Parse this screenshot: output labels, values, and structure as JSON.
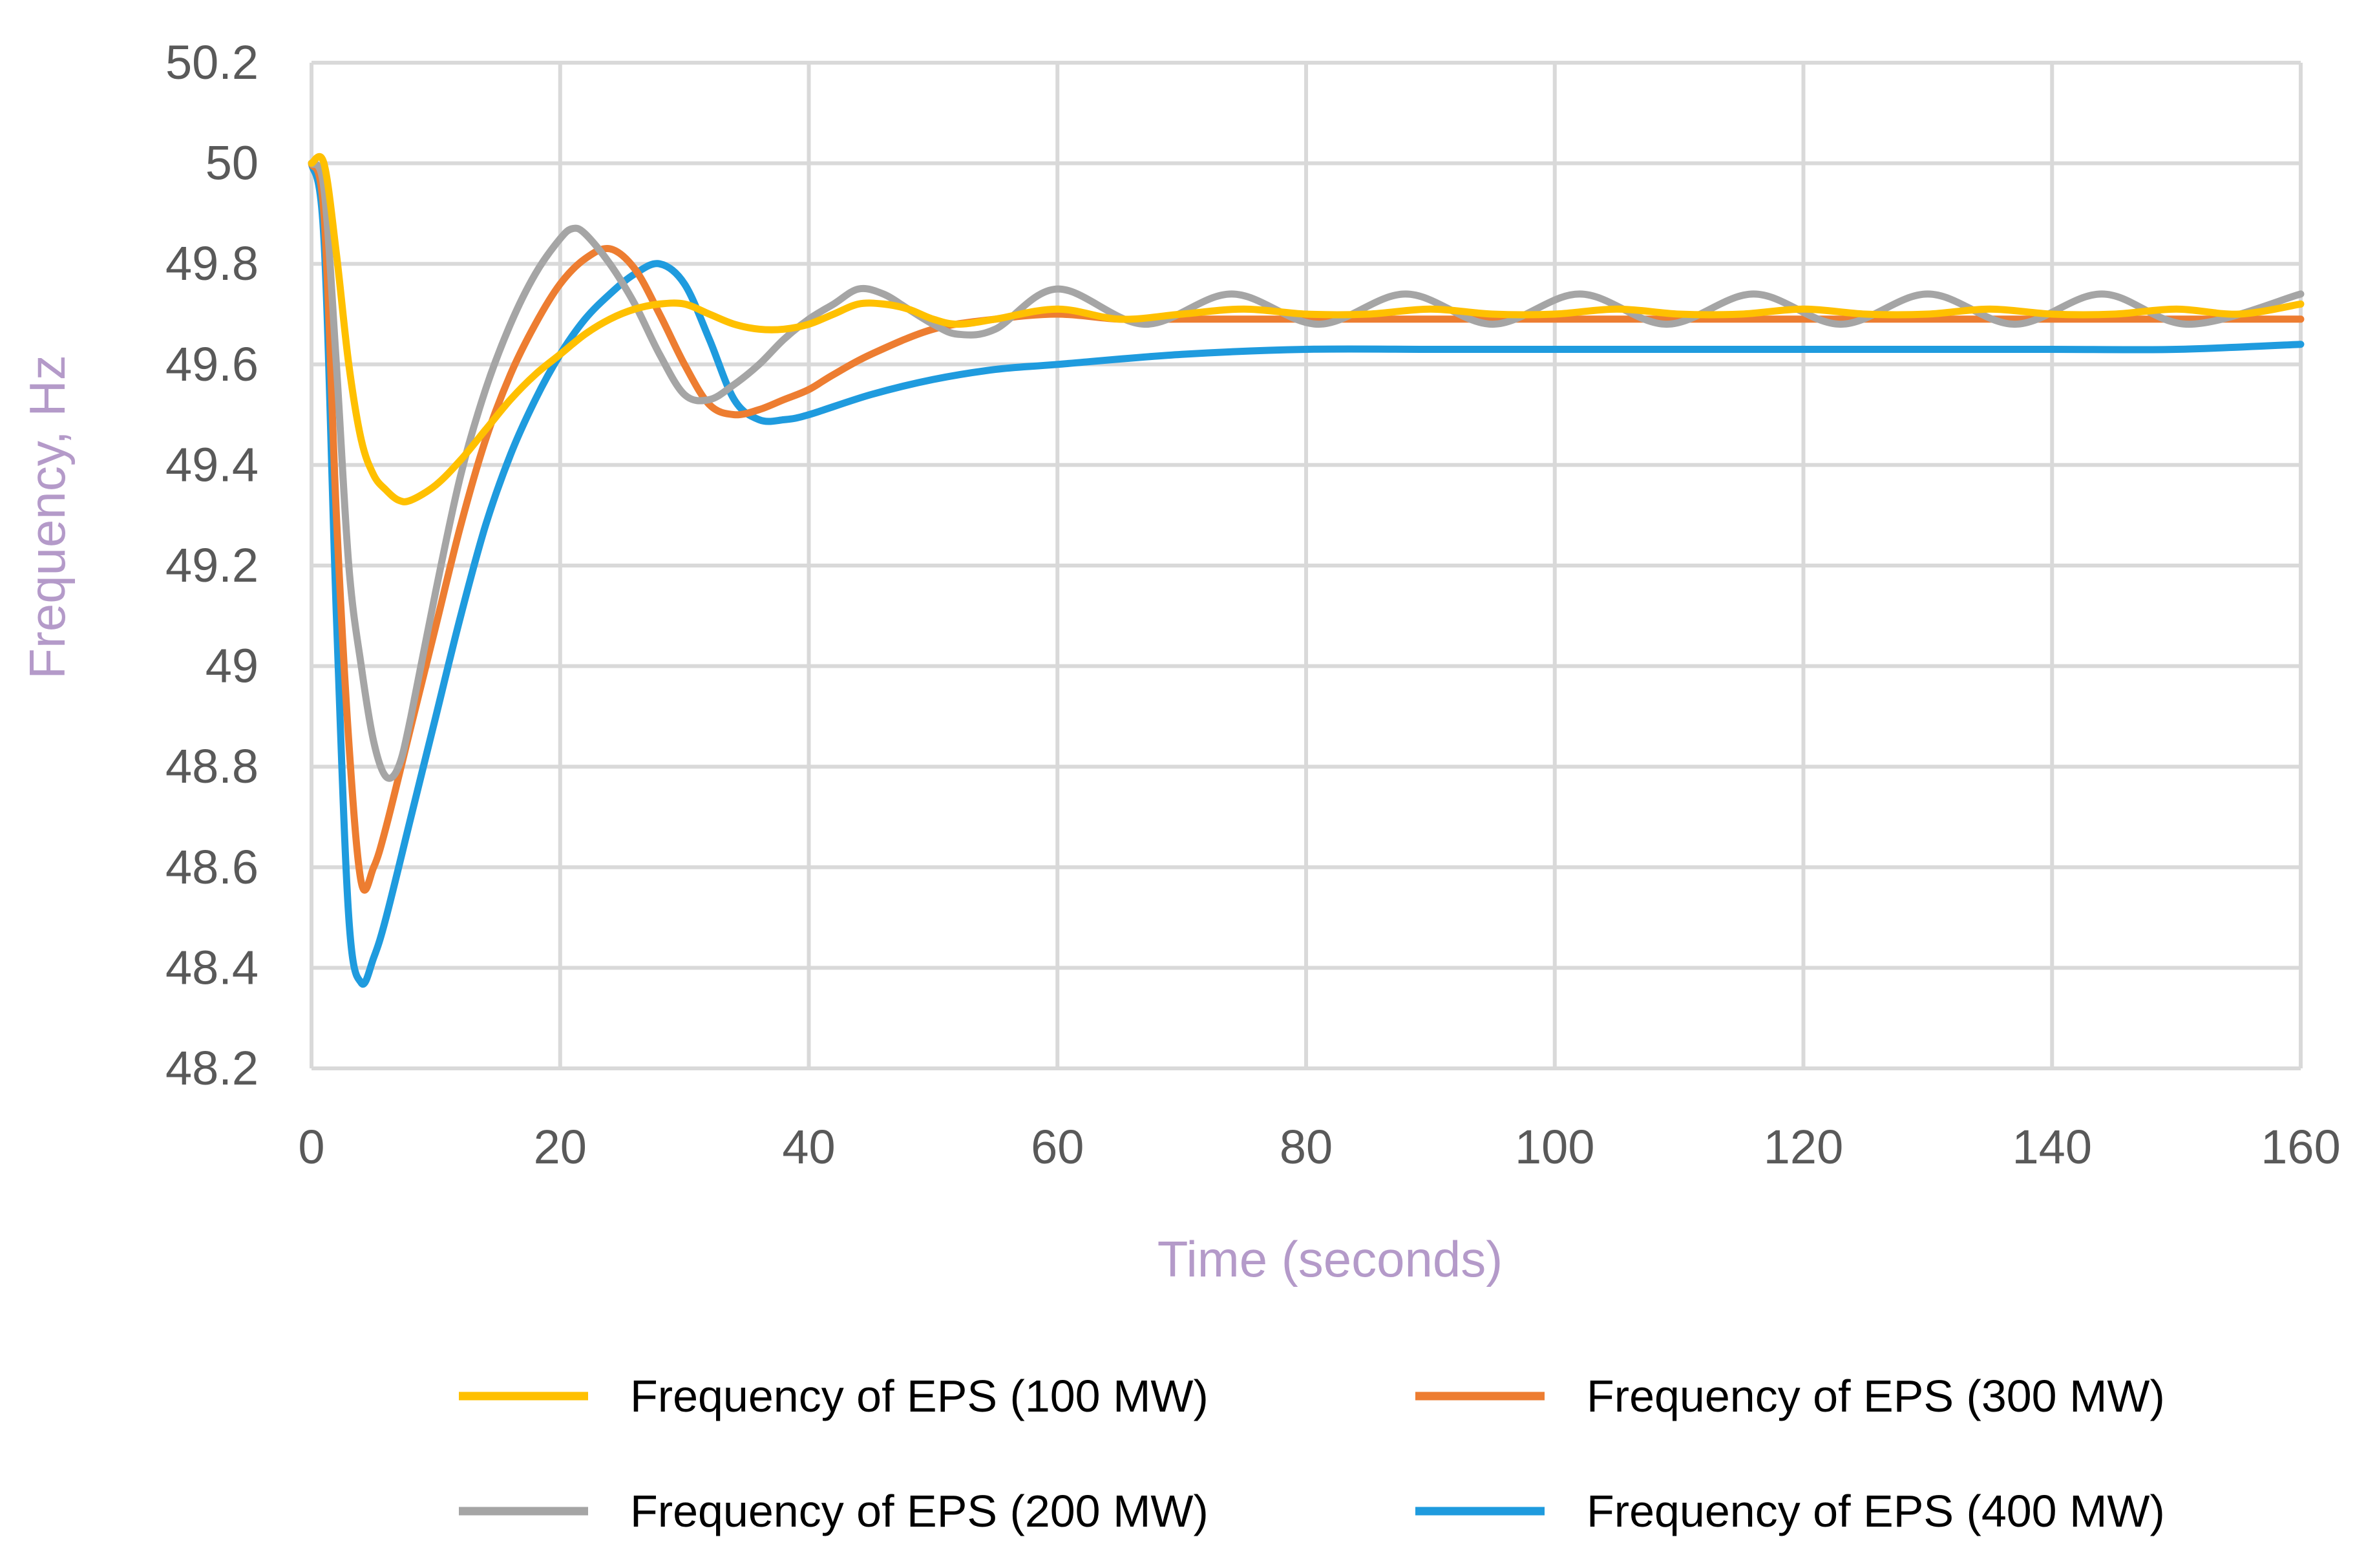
{
  "chart_data": {
    "type": "line",
    "title": "",
    "xlabel": "Time (seconds)",
    "ylabel": "Frequency, Hz",
    "xlim": [
      0,
      160
    ],
    "ylim": [
      48.2,
      50.2
    ],
    "xticks": [
      0,
      20,
      40,
      60,
      80,
      100,
      120,
      140,
      160
    ],
    "yticks": [
      "48.2",
      "48.4",
      "48.6",
      "48.8",
      "49",
      "49.2",
      "49.4",
      "49.6",
      "49.8",
      "50",
      "50.2"
    ],
    "grid": true,
    "legend_position": "bottom",
    "series": [
      {
        "name": "Frequency of EPS (100 MW)",
        "color": "#FFC000",
        "x": [
          0,
          1,
          2,
          3,
          4,
          5,
          6,
          7,
          8,
          10,
          12,
          14,
          16,
          18,
          20,
          22,
          24,
          26,
          28,
          30,
          32,
          34,
          36,
          38,
          40,
          42,
          44,
          46,
          48,
          50,
          52,
          55,
          60,
          65,
          70,
          75,
          80,
          85,
          90,
          95,
          100,
          105,
          110,
          115,
          120,
          125,
          130,
          135,
          140,
          145,
          150,
          155,
          160
        ],
        "y": [
          50.0,
          50.0,
          49.82,
          49.6,
          49.45,
          49.38,
          49.35,
          49.33,
          49.33,
          49.36,
          49.41,
          49.47,
          49.53,
          49.58,
          49.62,
          49.66,
          49.69,
          49.71,
          49.72,
          49.72,
          49.7,
          49.68,
          49.67,
          49.67,
          49.68,
          49.7,
          49.72,
          49.72,
          49.71,
          49.69,
          49.68,
          49.69,
          49.71,
          49.69,
          49.7,
          49.71,
          49.7,
          49.7,
          49.71,
          49.7,
          49.7,
          49.71,
          49.7,
          49.7,
          49.71,
          49.7,
          49.7,
          49.71,
          49.7,
          49.7,
          49.71,
          49.7,
          49.72
        ]
      },
      {
        "name": "Frequency of EPS (300 MW)",
        "color": "#ED7D31",
        "x": [
          0,
          1,
          2,
          3,
          4,
          5,
          6,
          8,
          10,
          12,
          14,
          16,
          18,
          20,
          22,
          24,
          26,
          28,
          30,
          32,
          34,
          36,
          38,
          40,
          42,
          45,
          50,
          55,
          60,
          65,
          70,
          80,
          90,
          100,
          110,
          120,
          130,
          140,
          150,
          160
        ],
        "y": [
          50.0,
          49.9,
          49.3,
          48.85,
          48.57,
          48.6,
          48.68,
          48.88,
          49.08,
          49.28,
          49.45,
          49.58,
          49.68,
          49.76,
          49.81,
          49.83,
          49.79,
          49.7,
          49.6,
          49.52,
          49.5,
          49.51,
          49.53,
          49.55,
          49.58,
          49.62,
          49.67,
          49.69,
          49.7,
          49.69,
          49.69,
          49.69,
          49.69,
          49.69,
          49.69,
          49.69,
          49.69,
          49.69,
          49.69,
          49.69
        ]
      },
      {
        "name": "Frequency of EPS (200 MW)",
        "color": "#A5A5A5",
        "x": [
          0,
          1,
          2,
          3,
          4,
          5,
          6,
          7,
          8,
          10,
          12,
          14,
          16,
          18,
          20,
          21,
          22,
          24,
          26,
          28,
          30,
          32,
          34,
          36,
          38,
          40,
          42,
          44,
          46,
          48,
          50,
          52,
          55,
          60,
          67,
          74,
          81,
          88,
          95,
          102,
          109,
          116,
          123,
          130,
          137,
          144,
          151,
          160
        ],
        "y": [
          50.0,
          49.95,
          49.6,
          49.2,
          49.0,
          48.85,
          48.78,
          48.8,
          48.9,
          49.15,
          49.38,
          49.55,
          49.68,
          49.78,
          49.85,
          49.87,
          49.86,
          49.8,
          49.72,
          49.62,
          49.54,
          49.53,
          49.56,
          49.6,
          49.65,
          49.69,
          49.72,
          49.75,
          49.74,
          49.71,
          49.68,
          49.66,
          49.67,
          49.75,
          49.68,
          49.74,
          49.68,
          49.74,
          49.68,
          49.74,
          49.68,
          49.74,
          49.68,
          49.74,
          49.68,
          49.74,
          49.68,
          49.74
        ]
      },
      {
        "name": "Frequency of EPS (400 MW)",
        "color": "#1F9BDE",
        "x": [
          0,
          1,
          2,
          3,
          4,
          5,
          6,
          8,
          10,
          12,
          14,
          16,
          18,
          20,
          22,
          24,
          26,
          28,
          30,
          32,
          34,
          36,
          38,
          40,
          45,
          50,
          55,
          60,
          70,
          80,
          90,
          100,
          110,
          120,
          130,
          140,
          150,
          160
        ],
        "y": [
          50.0,
          49.85,
          49.1,
          48.5,
          48.37,
          48.42,
          48.5,
          48.7,
          48.9,
          49.1,
          49.28,
          49.42,
          49.53,
          49.62,
          49.69,
          49.74,
          49.78,
          49.8,
          49.76,
          49.65,
          49.53,
          49.49,
          49.49,
          49.5,
          49.54,
          49.57,
          49.59,
          49.6,
          49.62,
          49.63,
          49.63,
          49.63,
          49.63,
          49.63,
          49.63,
          49.63,
          49.63,
          49.64
        ]
      }
    ]
  }
}
